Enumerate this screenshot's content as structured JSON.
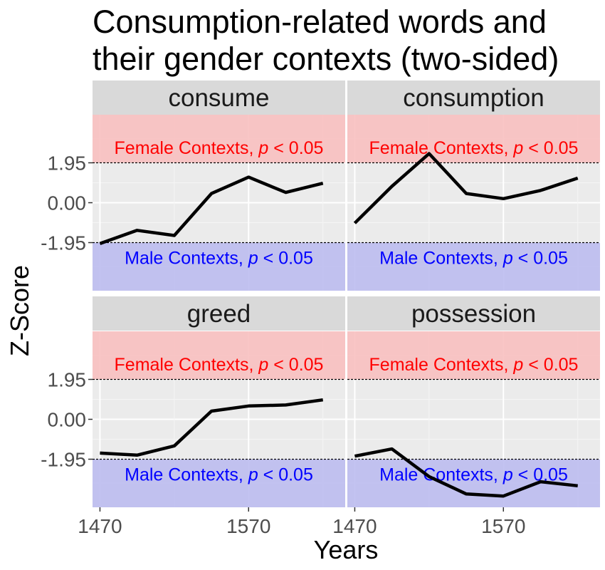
{
  "chart_data": {
    "type": "line",
    "title_lines": [
      "Consumption-related words and",
      "their gender contexts (two-sided)"
    ],
    "xlabel": "Years",
    "ylabel": "Z-Score",
    "x_ticks": [
      1470,
      1570
    ],
    "y_ticks": [
      {
        "value": 1.95,
        "label": "1.95"
      },
      {
        "value": 0,
        "label": "0.00"
      },
      {
        "value": -1.95,
        "label": "-1.95"
      }
    ],
    "xlim": [
      1465,
      1635
    ],
    "ylim": [
      -4.3,
      4.3
    ],
    "thresholds": [
      1.95,
      -1.95
    ],
    "regions": {
      "female": {
        "label_prefix": "Female Contexts, ",
        "label_p": "p",
        "label_suffix": " < 0.05",
        "color": "#f8c0c0",
        "text_color": "#ff0000"
      },
      "male": {
        "label_prefix": "Male Contexts, ",
        "label_p": "p",
        "label_suffix": " < 0.05",
        "color": "#bdbdf0",
        "text_color": "#0000ff"
      }
    },
    "x": [
      1470,
      1495,
      1520,
      1545,
      1570,
      1595,
      1620
    ],
    "panels": [
      {
        "name": "consume",
        "values": [
          -2.0,
          -1.35,
          -1.6,
          0.45,
          1.25,
          0.5,
          0.95
        ]
      },
      {
        "name": "consumption",
        "values": [
          -1.0,
          0.8,
          2.4,
          0.45,
          0.2,
          0.6,
          1.2
        ]
      },
      {
        "name": "greed",
        "values": [
          -1.65,
          -1.75,
          -1.3,
          0.4,
          0.65,
          0.7,
          0.95
        ]
      },
      {
        "name": "possession",
        "values": [
          -1.8,
          -1.45,
          -2.8,
          -3.65,
          -3.75,
          -3.05,
          -3.25
        ]
      }
    ]
  }
}
